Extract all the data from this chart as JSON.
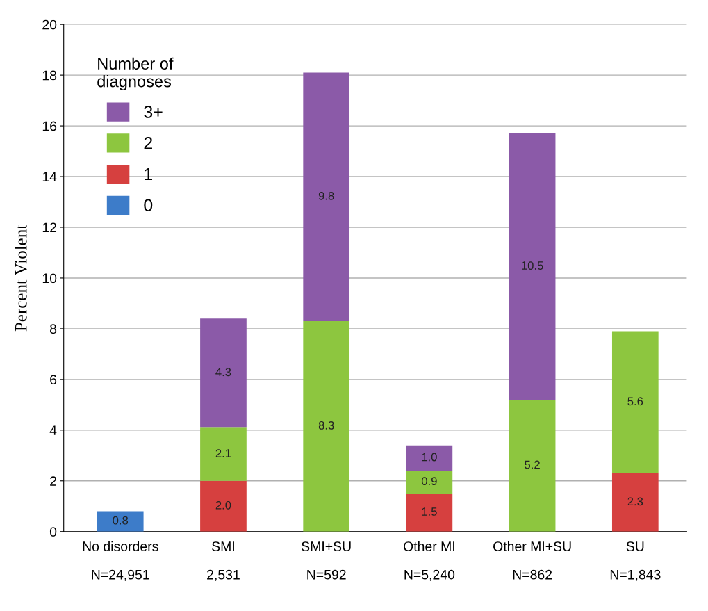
{
  "chart_data": {
    "type": "bar",
    "stacked": true,
    "ylabel": "Percent Violent",
    "legend_title": "Number of\ndiagnoses",
    "categories": [
      "No disorders\nN=24,951",
      "SMI\n2,531",
      "SMI+SU\nN=592",
      "Other MI\nN=5,240",
      "Other MI+SU\nN=862",
      "SU\nN=1,843"
    ],
    "series": [
      {
        "name": "0",
        "color": "#3d7cc9",
        "values": [
          0.8,
          null,
          null,
          null,
          null,
          null
        ],
        "value_labels": [
          "0.8",
          null,
          null,
          null,
          null,
          null
        ]
      },
      {
        "name": "1",
        "color": "#d6403f",
        "values": [
          null,
          2.0,
          null,
          1.5,
          null,
          2.3
        ],
        "value_labels": [
          null,
          "2.0",
          null,
          "1.5",
          null,
          "2.3"
        ]
      },
      {
        "name": "2",
        "color": "#8dc63f",
        "values": [
          null,
          2.1,
          8.3,
          0.9,
          5.2,
          5.6
        ],
        "value_labels": [
          null,
          "2.1",
          "8.3",
          "0.9",
          "5.2",
          "5.6"
        ]
      },
      {
        "name": "3+",
        "color": "#8b5aa8",
        "values": [
          null,
          4.3,
          9.8,
          1.0,
          10.5,
          null
        ],
        "value_labels": [
          null,
          "4.3",
          "9.8",
          "1.0",
          "10.5",
          null
        ]
      }
    ],
    "ylim": [
      0,
      20
    ],
    "yticks": [
      0,
      2,
      4,
      6,
      8,
      10,
      12,
      14,
      16,
      18,
      20
    ],
    "grid": "y",
    "legend": "top left"
  }
}
